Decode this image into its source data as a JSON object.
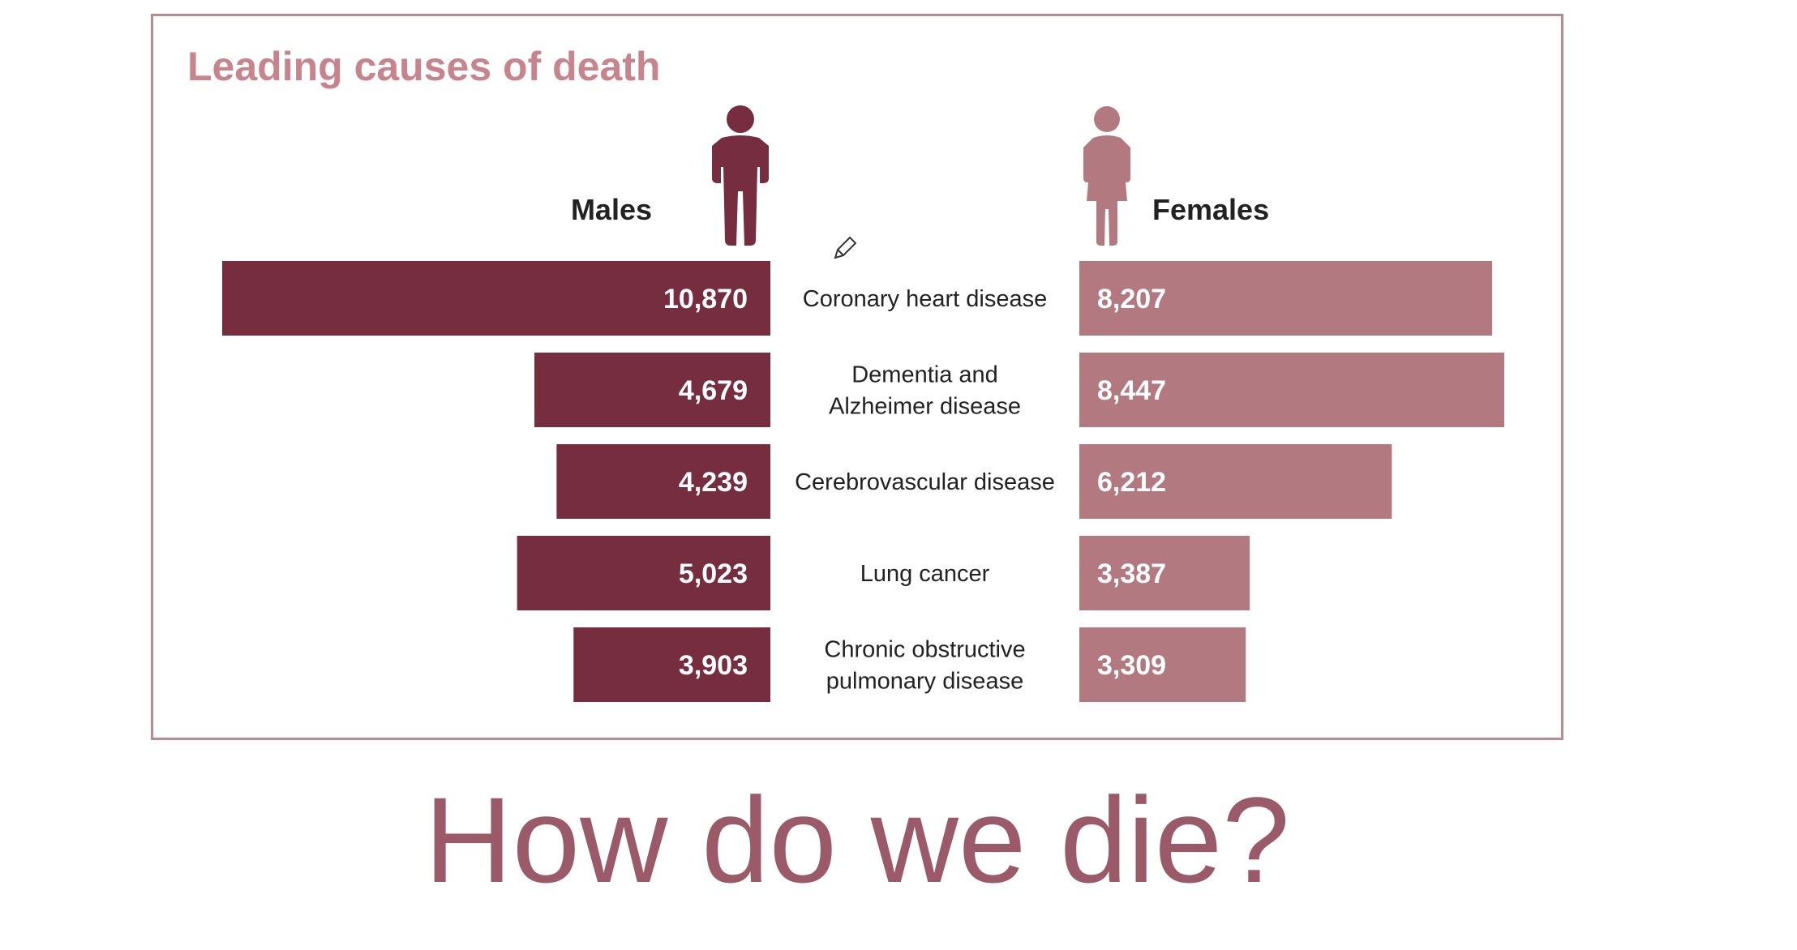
{
  "chart_data": {
    "type": "bar",
    "title": "Leading causes of death",
    "categories": [
      [
        "Coronary heart disease"
      ],
      [
        "Dementia and",
        "Alzheimer disease"
      ],
      [
        "Cerebrovascular disease"
      ],
      [
        "Lung cancer"
      ],
      [
        "Chronic obstructive",
        "pulmonary disease"
      ]
    ],
    "series": [
      {
        "name": "Males",
        "values": [
          10870,
          4679,
          4239,
          5023,
          3903
        ],
        "labels": [
          "10,870",
          "4,679",
          "4,239",
          "5,023",
          "3,903"
        ],
        "color": "#772d40"
      },
      {
        "name": "Females",
        "values": [
          8207,
          8447,
          6212,
          3387,
          3309
        ],
        "labels": [
          "8,207",
          "8,447",
          "6,212",
          "3,387",
          "3,309"
        ],
        "color": "#b27a80"
      }
    ],
    "orientation": "horizontal-butterfly",
    "grid": false
  },
  "slide": {
    "caption": "How do we die?"
  },
  "colors": {
    "title": "#c7848c",
    "frame": "#b98a91",
    "male": "#772d40",
    "female": "#b27a80",
    "caption": "#9b5a69"
  },
  "icons": {
    "male": "male-person-icon",
    "female": "female-person-icon",
    "cursor": "pencil-cursor-icon"
  }
}
